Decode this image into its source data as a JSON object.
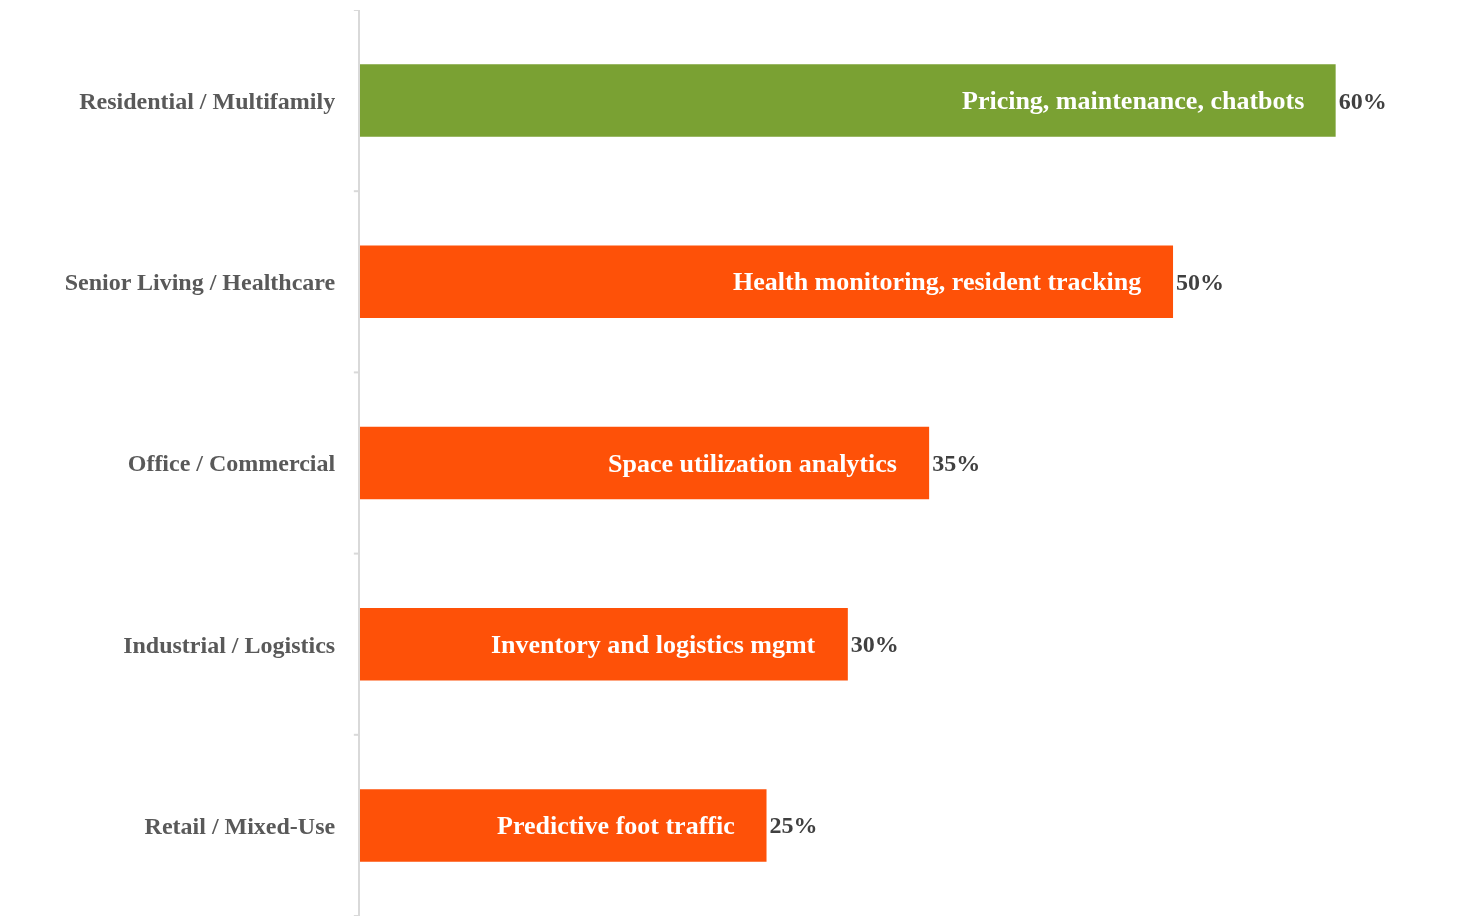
{
  "chart_data": {
    "type": "bar",
    "orientation": "horizontal",
    "categories": [
      "Residential / Multifamily",
      "Senior Living / Healthcare",
      "Office / Commercial",
      "Industrial / Logistics",
      "Retail / Mixed-Use"
    ],
    "values": [
      60,
      50,
      35,
      30,
      25
    ],
    "colors": [
      "#7aa133",
      "#fe5108",
      "#fe5108",
      "#fe5108",
      "#fe5108"
    ],
    "value_labels": [
      "60%",
      "50%",
      "35%",
      "30%",
      "25%"
    ],
    "tick_labels": "y",
    "legend": false,
    "annotations": [
      {
        "text": "Pricing, maintenance, chatbots",
        "x": 60,
        "y": "Residential / Multifamily"
      },
      {
        "text": "Health monitoring, resident tracking",
        "x": 50,
        "y": "Senior Living / Healthcare"
      },
      {
        "text": "Space utilization analytics",
        "x": 35,
        "y": "Office / Commercial"
      },
      {
        "text": "Inventory and logistics mgmt",
        "x": 30,
        "y": "Industrial / Logistics"
      },
      {
        "text": "Predictive foot traffic",
        "x": 25,
        "y": "Retail / Mixed-Use"
      }
    ]
  }
}
